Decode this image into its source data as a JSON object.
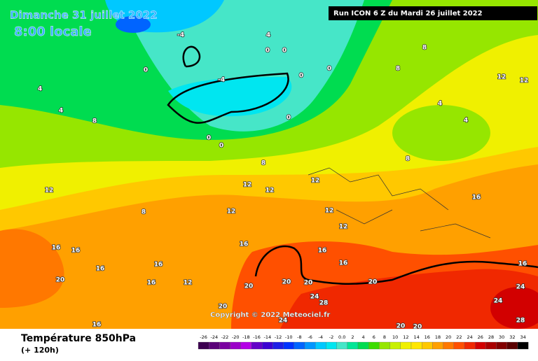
{
  "header": {
    "date": "Dimanche 31 juillet 2022",
    "time": "8:00 locale",
    "run": "Run ICON 6 Z du Mardi 26 juillet 2022",
    "copyright": "Copyright © 2022 Meteociel.fr"
  },
  "footer": {
    "title": "Température 850hPa",
    "lead": "(+ 120h)"
  },
  "color_scale": {
    "labels": [
      "-26",
      "-24",
      "-22",
      "-20",
      "-18",
      "-16",
      "-14",
      "-12",
      "-10",
      "-8",
      "-6",
      "-4",
      "-2",
      "0.0",
      "2",
      "4",
      "6",
      "8",
      "10",
      "12",
      "14",
      "16",
      "18",
      "20",
      "22",
      "24",
      "26",
      "28",
      "30",
      "32",
      "34"
    ],
    "colors": [
      "#3c0050",
      "#5a0078",
      "#7a00a0",
      "#9b00c8",
      "#b400e6",
      "#6400c8",
      "#3c00d2",
      "#1e1ee6",
      "#0032ff",
      "#0064ff",
      "#0096ff",
      "#00c8ff",
      "#00e6f0",
      "#46e6c8",
      "#00e696",
      "#00dc50",
      "#3cdc00",
      "#96e600",
      "#c8f000",
      "#f0f000",
      "#ffe600",
      "#ffc800",
      "#ffa000",
      "#ff7800",
      "#ff5000",
      "#f02800",
      "#d20000",
      "#aa0000",
      "#820000",
      "#5a0000",
      "#000000"
    ]
  },
  "contour_labels": [
    -4,
    4,
    0,
    0,
    8,
    0,
    -4,
    0,
    0,
    8,
    12,
    12,
    4,
    4,
    8,
    0,
    0,
    0,
    4,
    4,
    8,
    8,
    12,
    12,
    12,
    12,
    8,
    12,
    12,
    16,
    12,
    16,
    16,
    16,
    16,
    16,
    16,
    16,
    20,
    12,
    16,
    20,
    20,
    20,
    20,
    24,
    24,
    28,
    24,
    20,
    16,
    24,
    20,
    20,
    16,
    28
  ]
}
